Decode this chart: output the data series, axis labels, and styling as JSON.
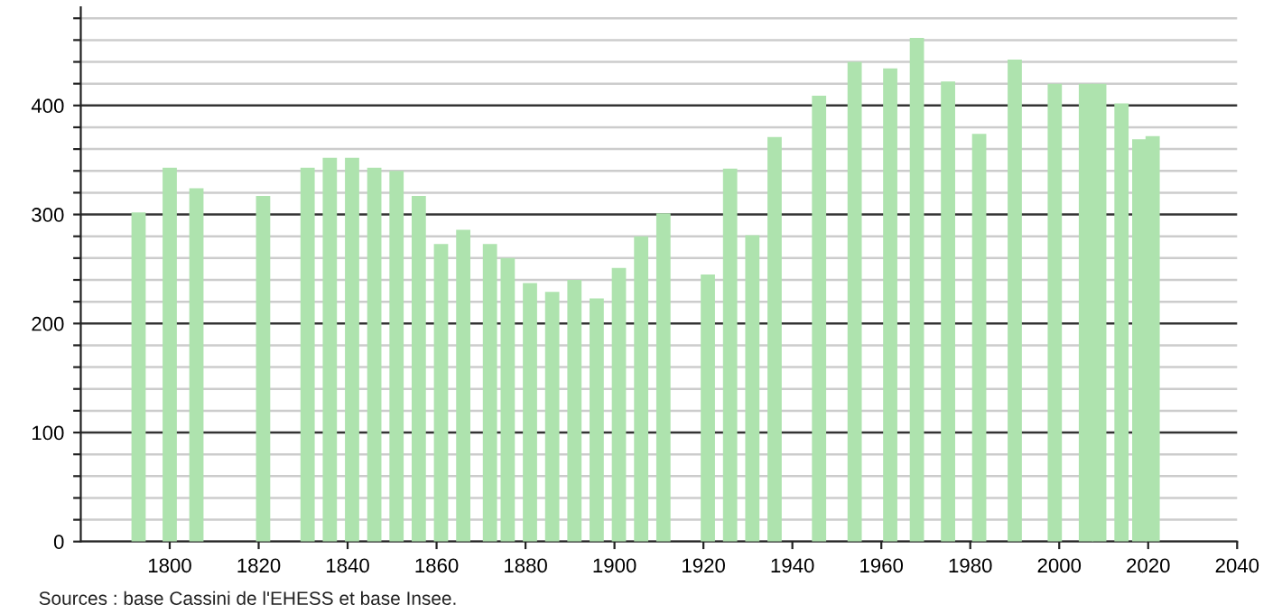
{
  "chart_data": {
    "type": "bar",
    "x": [
      1793,
      1800,
      1806,
      1821,
      1831,
      1836,
      1841,
      1846,
      1851,
      1856,
      1861,
      1866,
      1872,
      1876,
      1881,
      1886,
      1891,
      1896,
      1901,
      1906,
      1911,
      1921,
      1926,
      1931,
      1936,
      1946,
      1954,
      1962,
      1968,
      1975,
      1982,
      1990,
      1999,
      2006,
      2009,
      2014,
      2018,
      2021
    ],
    "values": [
      302,
      343,
      324,
      317,
      343,
      352,
      352,
      343,
      340,
      317,
      273,
      286,
      273,
      260,
      237,
      229,
      240,
      223,
      251,
      280,
      301,
      245,
      342,
      281,
      371,
      409,
      440,
      434,
      462,
      422,
      374,
      442,
      420,
      420,
      420,
      402,
      369,
      372
    ],
    "color": "#aee3ae",
    "xlim": [
      1780,
      2040
    ],
    "xticks": [
      1800,
      1820,
      1840,
      1860,
      1880,
      1900,
      1920,
      1940,
      1960,
      1980,
      2000,
      2020,
      2040
    ],
    "ylim": [
      0,
      490
    ],
    "yticks": [
      0,
      {
        "value": 20,
        "label": null
      },
      {
        "value": 40,
        "label": null
      },
      {
        "value": 60,
        "label": null
      },
      {
        "value": 80,
        "label": null
      },
      100,
      {
        "value": 120,
        "label": null
      },
      {
        "value": 140,
        "label": null
      },
      {
        "value": 160,
        "label": null
      },
      {
        "value": 180,
        "label": null
      },
      200,
      {
        "value": 220,
        "label": null
      },
      {
        "value": 240,
        "label": null
      },
      {
        "value": 260,
        "label": null
      },
      {
        "value": 280,
        "label": null
      },
      300,
      {
        "value": 320,
        "label": null
      },
      {
        "value": 340,
        "label": null
      },
      {
        "value": 360,
        "label": null
      },
      {
        "value": 380,
        "label": null
      },
      400,
      {
        "value": 420,
        "label": null
      },
      {
        "value": 440,
        "label": null
      },
      {
        "value": 460,
        "label": null
      },
      {
        "value": 480,
        "label": null
      }
    ],
    "grid": "y",
    "annotations": [
      "Sources : base Cassini de l'EHESS et base Insee."
    ]
  }
}
